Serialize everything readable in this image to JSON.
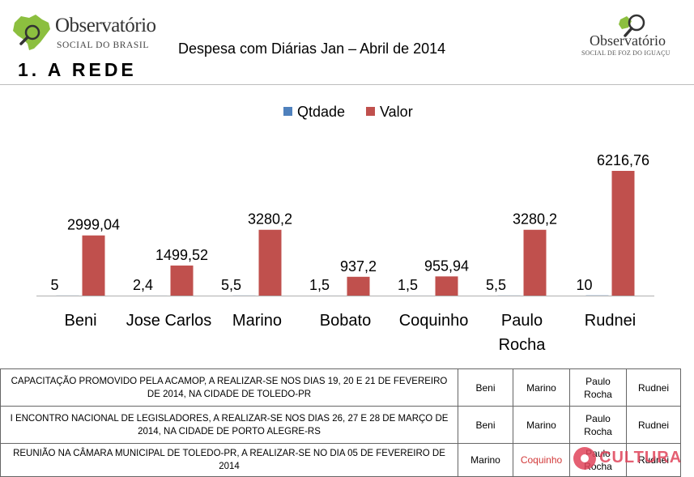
{
  "header": {
    "logo_left": {
      "line1": "Observatório",
      "line2": "SOCIAL DO BRASIL"
    },
    "logo_right": {
      "line1": "Observatório",
      "line2": "SOCIAL DE FOZ DO IGUAÇU"
    },
    "subtitle": "Despesa com Diárias  Jan – Abril de 2014",
    "section_title": "1.  A REDE"
  },
  "chart_data": {
    "type": "bar",
    "title": "",
    "xlabel": "",
    "ylabel": "",
    "grid": false,
    "legend_position": "top",
    "categories": [
      [
        "Beni"
      ],
      [
        "Jose Carlos"
      ],
      [
        "Marino"
      ],
      [
        "Bobato"
      ],
      [
        "Coquinho"
      ],
      [
        "Paulo",
        "Rocha"
      ],
      [
        "Rudnei"
      ]
    ],
    "series": [
      {
        "name": "Qtdade",
        "color": "#4f81bd",
        "values": [
          5,
          2.4,
          5.5,
          1.5,
          1.5,
          5.5,
          10
        ],
        "labels": [
          "5",
          "2,4",
          "5,5",
          "1,5",
          "1,5",
          "5,5",
          "10"
        ]
      },
      {
        "name": "Valor",
        "color": "#c0504d",
        "values": [
          2999.04,
          1499.52,
          3280.2,
          937.2,
          955.94,
          3280.2,
          6216.76
        ],
        "labels": [
          "2999,04",
          "1499,52",
          "3280,2",
          "937,2",
          "955,94",
          "3280,2",
          "6216,76"
        ]
      }
    ],
    "ylim": [
      0,
      6216.76
    ]
  },
  "table": {
    "rows": [
      [
        "CAPACITAÇÃO  PROMOVIDO PELA ACAMOP,  A REALIZAR-SE NOS DIAS 19, 20 E 21 DE FEVEREIRO DE 2014, NA CIDADE DE TOLEDO-PR",
        "Beni",
        "Marino",
        "Paulo Rocha",
        "Rudnei"
      ],
      [
        "I ENCONTRO NACIONAL DE LEGISLADORES, A REALIZAR-SE NOS DIAS 26, 27 E 28 DE MARÇO DE 2014, NA CIDADE DE PORTO ALEGRE-RS",
        "Beni",
        "Marino",
        "Paulo Rocha",
        "Rudnei"
      ],
      [
        "REUNIÃO NA CÂMARA MUNICIPAL DE TOLEDO-PR, A REALIZAR-SE NO DIA 05 DE FEVEREIRO DE 2014",
        "Marino",
        "Coquinho",
        "Paulo Rocha",
        "Rudnei"
      ]
    ]
  },
  "colors": {
    "bar_blue": "#4f81bd",
    "bar_red": "#c0504d",
    "highlight_text": "#d23a3a",
    "watermark": "#e0445a"
  },
  "watermark": {
    "text": "CULTURA"
  }
}
